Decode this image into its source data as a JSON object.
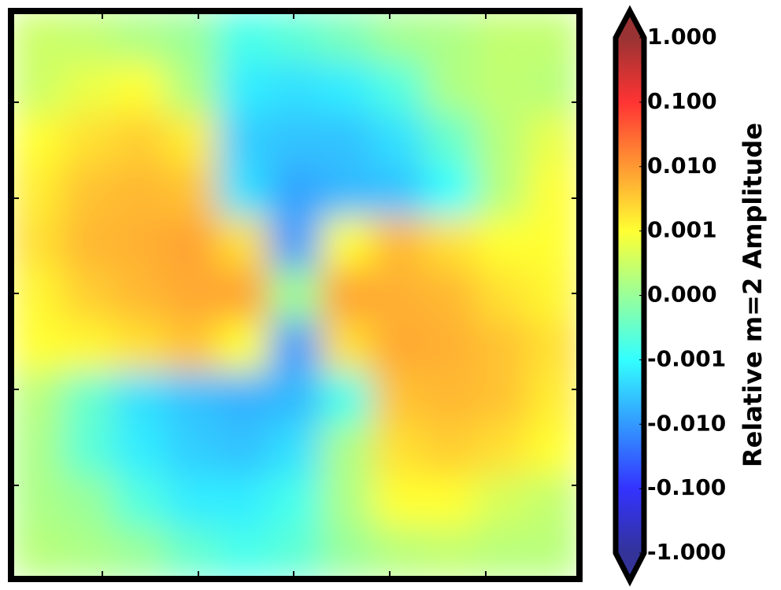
{
  "chart_data": {
    "type": "contourf",
    "colormap": "jet",
    "z": [
      [
        0.0005,
        0.0004,
        0.0002,
        0,
        -0.0008,
        -0.0006,
        -0.0003,
        0.0001,
        0.0002,
        0.0004,
        0.0004
      ],
      [
        0.0005,
        0.0008,
        0.001,
        0.0002,
        -0.0015,
        -0.002,
        -0.0015,
        -0.0007,
        0.0002,
        0.0004,
        0.0003
      ],
      [
        0.001,
        0.002,
        0.003,
        0.0015,
        -0.003,
        -0.004,
        -0.004,
        -0.002,
        -0.0005,
        0.0003,
        0.0008
      ],
      [
        0.0015,
        0.004,
        0.005,
        0.004,
        -0.002,
        -0.008,
        -0.005,
        -0.004,
        -0.001,
        0.0003,
        0.001
      ],
      [
        0.002,
        0.005,
        0.006,
        0.008,
        0.002,
        -0.01,
        0.001,
        0.005,
        0.002,
        0.001,
        0.001
      ],
      [
        0.0012,
        0.003,
        0.005,
        0.007,
        0.008,
        0,
        0.008,
        0.006,
        0.005,
        0.002,
        0.0012
      ],
      [
        0.001,
        0.0012,
        0.002,
        0.004,
        0.001,
        -0.01,
        0.002,
        0.007,
        0.006,
        0.004,
        0.002
      ],
      [
        0.0003,
        -0.0005,
        -0.002,
        -0.004,
        -0.006,
        -0.005,
        -0.0008,
        0.004,
        0.005,
        0.004,
        0.0015
      ],
      [
        0.0002,
        -0.0006,
        -0.0015,
        -0.003,
        -0.004,
        -0.002,
        0.0002,
        0.002,
        0.003,
        0.002,
        0.001
      ],
      [
        0.0002,
        0,
        -0.0007,
        -0.0015,
        -0.0015,
        -0.0008,
        0.0002,
        0.001,
        0.001,
        0.0006,
        0.0004
      ],
      [
        0.0003,
        0.0002,
        0,
        -0.0005,
        -0.0008,
        -0.0006,
        0,
        0.0003,
        0.0004,
        0.0003,
        0.0003
      ]
    ],
    "colorbar": {
      "label": "Relative m=2 Amplitude",
      "extend": "both",
      "ticks": [
        {
          "value": -1,
          "label": "-1.000"
        },
        {
          "value": -0.1,
          "label": "-0.100"
        },
        {
          "value": -0.01,
          "label": "-0.010"
        },
        {
          "value": -0.001,
          "label": "-0.001"
        },
        {
          "value": 0,
          "label": "0.000"
        },
        {
          "value": 0.001,
          "label": "0.001"
        },
        {
          "value": 0.01,
          "label": "0.010"
        },
        {
          "value": 0.1,
          "label": "0.100"
        },
        {
          "value": 1,
          "label": "1.000"
        }
      ]
    }
  }
}
